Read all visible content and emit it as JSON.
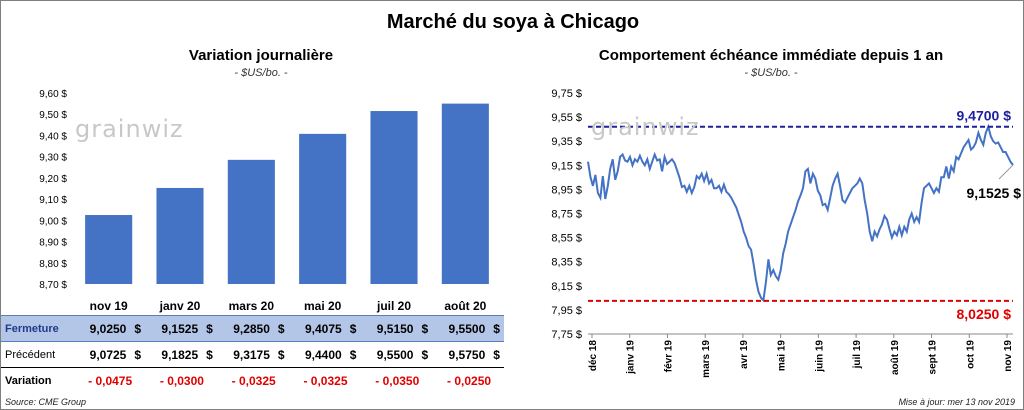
{
  "main_title": "Marché du soya à Chicago",
  "left": {
    "title": "Variation  journalière",
    "units": "- $US/bo. -"
  },
  "right": {
    "title": "Comportement  échéance immédiate depuis 1 an",
    "units": "- $US/bo. -"
  },
  "watermark": {
    "prefix": "grain",
    "suffix": "wiz"
  },
  "source": "Source: CME Group",
  "updated": "Mise à jour: mer 13 nov 2019",
  "colors": {
    "bar": "#4472c4",
    "line": "#4472c4",
    "high": "#1f1f9e",
    "low": "#e00000",
    "table_highlight": "#b4c6e7"
  },
  "table": {
    "currency": "$",
    "rows": [
      {
        "label": "Fermeture",
        "values": [
          "9,0250",
          "9,1525",
          "9,2850",
          "9,4075",
          "9,5150",
          "9,5500"
        ]
      },
      {
        "label": "Précédent",
        "values": [
          "9,0725",
          "9,1825",
          "9,3175",
          "9,4400",
          "9,5500",
          "9,5750"
        ]
      },
      {
        "label": "Variation",
        "values": [
          "- 0,0475",
          "- 0,0300",
          "- 0,0325",
          "- 0,0325",
          "- 0,0350",
          "- 0,0250"
        ]
      }
    ]
  },
  "chart_data": [
    {
      "type": "bar",
      "categories": [
        "nov 19",
        "janv 20",
        "mars 20",
        "mai 20",
        "juil 20",
        "août 20"
      ],
      "values": [
        9.025,
        9.1525,
        9.285,
        9.4075,
        9.515,
        9.55
      ],
      "ylim": [
        8.7,
        9.6
      ],
      "yticks": [
        "8,70 $",
        "8,80 $",
        "8,90 $",
        "9,00 $",
        "9,10 $",
        "9,20 $",
        "9,30 $",
        "9,40 $",
        "9,50 $",
        "9,60 $"
      ],
      "grid": false
    },
    {
      "type": "line",
      "ylim": [
        7.75,
        9.75
      ],
      "yticks": [
        "7,75 $",
        "7,95 $",
        "8,15 $",
        "8,35 $",
        "8,55 $",
        "8,75 $",
        "8,95 $",
        "9,15 $",
        "9,35 $",
        "9,55 $",
        "9,75 $"
      ],
      "xticks": [
        "déc 18",
        "janv 19",
        "févr 19",
        "mars 19",
        "avr 19",
        "mai 19",
        "juin 19",
        "juil 19",
        "août 19",
        "sept 19",
        "oct 19",
        "nov 19"
      ],
      "high": {
        "value": 9.47,
        "label": "9,4700 $"
      },
      "low": {
        "value": 8.025,
        "label": "8,0250 $"
      },
      "last": {
        "value": 9.1525,
        "label": "9,1525 $"
      },
      "grid": false,
      "series": [
        {
          "values": [
            9.18,
            9.05,
            8.98,
            9.07,
            8.92,
            8.88,
            9.06,
            8.87,
            8.98,
            9.12,
            9.2,
            9.03,
            9.1,
            9.22,
            9.24,
            9.19,
            9.18,
            9.22,
            9.15,
            9.2,
            9.18,
            9.23,
            9.18,
            9.15,
            9.2,
            9.12,
            9.18,
            9.24,
            9.19,
            9.2,
            9.1,
            9.22,
            9.16,
            9.18,
            9.2,
            9.17,
            9.11,
            9.05,
            8.97,
            8.98,
            8.93,
            8.98,
            8.92,
            8.97,
            9.06,
            9.04,
            9.08,
            9.02,
            9.08,
            9.0,
            9.03,
            8.96,
            8.96,
            8.98,
            8.93,
            8.99,
            8.93,
            8.91,
            8.88,
            8.84,
            8.8,
            8.74,
            8.68,
            8.6,
            8.55,
            8.48,
            8.45,
            8.33,
            8.2,
            8.1,
            8.05,
            8.03,
            8.18,
            8.37,
            8.24,
            8.28,
            8.23,
            8.2,
            8.28,
            8.42,
            8.5,
            8.6,
            8.66,
            8.72,
            8.78,
            8.85,
            8.9,
            8.96,
            9.1,
            9.12,
            9.0,
            9.08,
            9.04,
            8.94,
            8.9,
            8.82,
            8.83,
            8.78,
            8.88,
            8.98,
            9.04,
            9.08,
            8.98,
            8.86,
            8.84,
            8.88,
            8.92,
            8.96,
            8.98,
            9.0,
            9.04,
            9.0,
            8.86,
            8.75,
            8.6,
            8.52,
            8.6,
            8.56,
            8.62,
            8.66,
            8.73,
            8.7,
            8.62,
            8.55,
            8.6,
            8.57,
            8.64,
            8.57,
            8.64,
            8.6,
            8.7,
            8.75,
            8.68,
            8.72,
            8.68,
            8.84,
            8.96,
            8.98,
            9.0,
            8.96,
            8.92,
            8.96,
            8.93,
            9.05,
            9.05,
            9.14,
            9.04,
            9.14,
            9.1,
            9.22,
            9.2,
            9.25,
            9.3,
            9.33,
            9.36,
            9.28,
            9.3,
            9.34,
            9.42,
            9.36,
            9.32,
            9.42,
            9.47,
            9.39,
            9.35,
            9.33,
            9.34,
            9.3,
            9.26,
            9.26,
            9.22,
            9.18,
            9.1525
          ]
        }
      ]
    }
  ]
}
